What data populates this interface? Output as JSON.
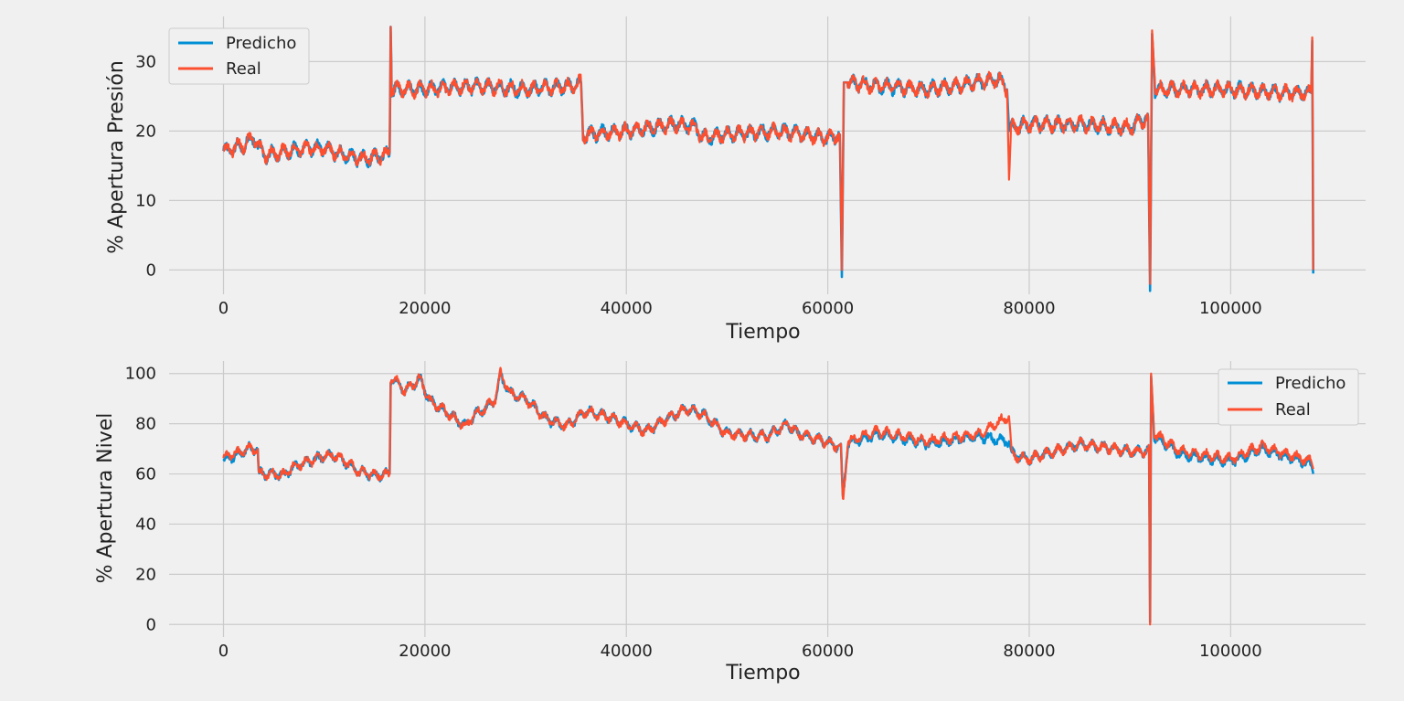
{
  "chart_data": [
    {
      "type": "line",
      "title": "",
      "xlabel": "Tiempo",
      "ylabel": "% Apertura Presión",
      "xlim": [
        -5400,
        113400
      ],
      "ylim": [
        -3.5,
        36.5
      ],
      "xticks": [
        0,
        20000,
        40000,
        60000,
        80000,
        100000
      ],
      "xtick_labels": [
        "0",
        "20000",
        "40000",
        "60000",
        "80000",
        "100000"
      ],
      "yticks": [
        0,
        10,
        20,
        30
      ],
      "ytick_labels": [
        "0",
        "10",
        "20",
        "30"
      ],
      "grid": true,
      "legend": "top-left",
      "noise_amplitude": 1.3,
      "series": [
        {
          "name": "Predicho",
          "color": "#008fd5",
          "x": [
            0,
            2000,
            3000,
            4000,
            6000,
            8000,
            10000,
            12000,
            14000,
            16000,
            16500,
            16600,
            16700,
            20000,
            25000,
            30000,
            35000,
            35500,
            35700,
            40000,
            45000,
            47000,
            47500,
            50000,
            55000,
            60000,
            61200,
            61400,
            61600,
            62000,
            65000,
            70000,
            75000,
            77000,
            77800,
            78000,
            78200,
            80000,
            85000,
            90000,
            91800,
            92000,
            92200,
            92500,
            95000,
            100000,
            105000,
            108000,
            108100,
            108200
          ],
          "y": [
            17,
            18,
            19,
            16.5,
            17,
            17.5,
            17.5,
            16.5,
            16,
            16.5,
            17,
            35,
            26,
            26,
            26.5,
            26,
            26.5,
            27,
            19.5,
            20,
            21,
            20.5,
            19,
            19.5,
            20,
            19,
            19.5,
            -1,
            27,
            27,
            26.5,
            26,
            27,
            27.5,
            26,
            20,
            20.5,
            21,
            21,
            20.5,
            22,
            -3,
            34,
            26,
            26,
            26,
            25.5,
            25.5,
            33,
            -0.5
          ]
        },
        {
          "name": "Real",
          "color": "#fc4f30",
          "x": [
            0,
            2000,
            3000,
            4000,
            6000,
            8000,
            10000,
            12000,
            14000,
            16000,
            16500,
            16600,
            16700,
            20000,
            25000,
            30000,
            35000,
            35500,
            35700,
            40000,
            45000,
            47000,
            47500,
            50000,
            55000,
            60000,
            61200,
            61400,
            61600,
            62000,
            65000,
            70000,
            75000,
            77000,
            77800,
            78000,
            78200,
            80000,
            85000,
            90000,
            91800,
            92000,
            92200,
            92500,
            95000,
            100000,
            105000,
            108000,
            108100,
            108200
          ],
          "y": [
            17,
            18,
            19,
            16.5,
            17,
            17.5,
            17.5,
            16.5,
            16,
            16.5,
            17,
            35,
            26,
            26,
            26.5,
            26,
            26.5,
            27,
            19.5,
            20,
            21,
            20.5,
            19,
            19.5,
            20,
            19,
            19.5,
            0,
            27,
            27,
            26.5,
            26,
            27,
            27.5,
            26,
            13,
            20.5,
            21,
            21,
            20.5,
            22,
            -2,
            34.5,
            26,
            26,
            26,
            25.5,
            25.5,
            33.5,
            0
          ]
        }
      ]
    },
    {
      "type": "line",
      "title": "",
      "xlabel": "Tiempo",
      "ylabel": "% Apertura Nivel",
      "xlim": [
        -5400,
        113400
      ],
      "ylim": [
        -5,
        105
      ],
      "xticks": [
        0,
        20000,
        40000,
        60000,
        80000,
        100000
      ],
      "xtick_labels": [
        "0",
        "20000",
        "40000",
        "60000",
        "80000",
        "100000"
      ],
      "yticks": [
        0,
        20,
        40,
        60,
        80,
        100
      ],
      "ytick_labels": [
        "0",
        "20",
        "40",
        "60",
        "80",
        "100"
      ],
      "grid": true,
      "legend": "top-right",
      "noise_amplitude": 2.5,
      "series": [
        {
          "name": "Predicho",
          "color": "#008fd5",
          "x": [
            0,
            500,
            1000,
            1500,
            2500,
            3400,
            3500,
            5000,
            6000,
            7000,
            8500,
            10000,
            11000,
            12000,
            13500,
            15000,
            16500,
            16600,
            17500,
            18000,
            19500,
            20500,
            22000,
            24000,
            25000,
            26000,
            27000,
            27500,
            28500,
            30000,
            32000,
            34000,
            36000,
            38000,
            40000,
            42000,
            44000,
            46000,
            47500,
            50000,
            54000,
            56000,
            57000,
            59000,
            61000,
            61300,
            61500,
            62000,
            65000,
            70000,
            75000,
            78000,
            78300,
            80000,
            85000,
            90000,
            91900,
            92000,
            92100,
            92400,
            95000,
            100000,
            103000,
            108000,
            108200
          ],
          "y": [
            65,
            67,
            67,
            68,
            70,
            70,
            60,
            60,
            59.5,
            63,
            65,
            67,
            67.5,
            65,
            61,
            59.5,
            60,
            98,
            96,
            93,
            98,
            89,
            85,
            79,
            84,
            86,
            90,
            99,
            92,
            90,
            82,
            79,
            85,
            83,
            80,
            77,
            82,
            86,
            84,
            76,
            75,
            80,
            76,
            74,
            71,
            72,
            50,
            72,
            76,
            72,
            75,
            73,
            68,
            66,
            72,
            69,
            69,
            1,
            99,
            75,
            68,
            65,
            70,
            64,
            60
          ]
        },
        {
          "name": "Real",
          "color": "#fc4f30",
          "x": [
            0,
            500,
            1000,
            1500,
            2500,
            3400,
            3500,
            5000,
            6000,
            7000,
            8500,
            10000,
            11000,
            12000,
            13500,
            15000,
            16500,
            16600,
            17500,
            18000,
            19500,
            20500,
            22000,
            24000,
            25000,
            26000,
            27000,
            27500,
            28500,
            30000,
            32000,
            34000,
            36000,
            38000,
            40000,
            42000,
            44000,
            46000,
            47500,
            50000,
            54000,
            56000,
            57000,
            59000,
            61000,
            61300,
            61500,
            62000,
            65000,
            70000,
            75000,
            78000,
            78300,
            80000,
            85000,
            90000,
            91900,
            92000,
            92100,
            92400,
            95000,
            100000,
            103000,
            108000,
            108200
          ],
          "y": [
            66,
            67,
            68,
            68.5,
            70,
            70,
            60,
            60,
            59.5,
            63,
            65,
            67,
            67.5,
            65,
            61,
            59.5,
            60,
            98,
            96,
            93,
            98,
            89,
            85,
            79,
            84,
            86,
            90,
            100,
            92,
            90,
            82,
            79,
            85,
            83,
            80,
            77,
            82,
            86,
            84,
            76,
            75,
            80,
            76,
            74,
            71,
            72,
            48,
            73,
            77,
            73,
            76,
            83,
            67,
            66,
            72,
            69,
            69,
            0,
            100,
            76,
            69,
            66,
            71,
            65,
            62
          ]
        }
      ]
    }
  ]
}
